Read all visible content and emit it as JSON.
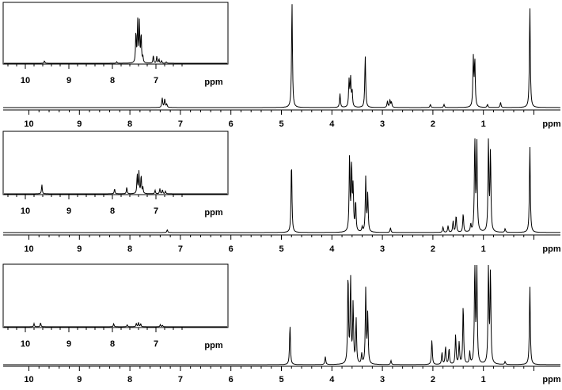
{
  "chart_data": [
    {
      "type": "line",
      "xlabel": "ppm",
      "x_reversed": true,
      "xlim": [
        10.5,
        -0.2
      ],
      "xticks": [
        "10",
        "9",
        "8",
        "7",
        "6",
        "5",
        "4",
        "3",
        "2",
        "1",
        "ppm"
      ],
      "peaks": [
        {
          "ppm": 7.36,
          "h": 0.09
        },
        {
          "ppm": 7.31,
          "h": 0.08
        },
        {
          "ppm": 7.27,
          "h": 0.03
        },
        {
          "ppm": 4.79,
          "h": 1.0
        },
        {
          "ppm": 3.84,
          "h": 0.13
        },
        {
          "ppm": 3.66,
          "h": 0.25
        },
        {
          "ppm": 3.63,
          "h": 0.27
        },
        {
          "ppm": 3.6,
          "h": 0.15
        },
        {
          "ppm": 3.34,
          "h": 0.49
        },
        {
          "ppm": 2.9,
          "h": 0.06
        },
        {
          "ppm": 2.85,
          "h": 0.07
        },
        {
          "ppm": 2.82,
          "h": 0.05
        },
        {
          "ppm": 2.05,
          "h": 0.03
        },
        {
          "ppm": 1.78,
          "h": 0.03
        },
        {
          "ppm": 1.2,
          "h": 0.46
        },
        {
          "ppm": 1.17,
          "h": 0.44
        },
        {
          "ppm": 0.92,
          "h": 0.03
        },
        {
          "ppm": 0.66,
          "h": 0.05
        },
        {
          "ppm": 0.08,
          "h": 0.96
        }
      ],
      "inset": {
        "xlim": [
          10.5,
          6.2
        ],
        "xticks": [
          "10",
          "9",
          "8",
          "7",
          "ppm"
        ],
        "peaks": [
          {
            "ppm": 9.56,
            "h": 0.05
          },
          {
            "ppm": 7.9,
            "h": 0.03
          },
          {
            "ppm": 7.46,
            "h": 0.62
          },
          {
            "ppm": 7.42,
            "h": 0.84
          },
          {
            "ppm": 7.38,
            "h": 0.82
          },
          {
            "ppm": 7.34,
            "h": 0.58
          },
          {
            "ppm": 7.3,
            "h": 0.12
          },
          {
            "ppm": 7.06,
            "h": 0.16
          },
          {
            "ppm": 6.98,
            "h": 0.14
          },
          {
            "ppm": 6.93,
            "h": 0.08
          },
          {
            "ppm": 6.87,
            "h": 0.05
          },
          {
            "ppm": 6.76,
            "h": 0.03
          }
        ]
      }
    },
    {
      "type": "line",
      "xlabel": "ppm",
      "x_reversed": true,
      "xlim": [
        10.5,
        -0.2
      ],
      "xticks": [
        "10",
        "9",
        "8",
        "7",
        "6",
        "5",
        "4",
        "3",
        "2",
        "1",
        "ppm"
      ],
      "peaks": [
        {
          "ppm": 7.26,
          "h": 0.03
        },
        {
          "ppm": 4.8,
          "h": 0.76
        },
        {
          "ppm": 3.65,
          "h": 0.8
        },
        {
          "ppm": 3.61,
          "h": 0.7
        },
        {
          "ppm": 3.58,
          "h": 0.45
        },
        {
          "ppm": 3.53,
          "h": 0.32
        },
        {
          "ppm": 3.4,
          "h": 0.05
        },
        {
          "ppm": 3.33,
          "h": 0.58
        },
        {
          "ppm": 3.29,
          "h": 0.4
        },
        {
          "ppm": 2.84,
          "h": 0.05
        },
        {
          "ppm": 1.8,
          "h": 0.06
        },
        {
          "ppm": 1.7,
          "h": 0.07
        },
        {
          "ppm": 1.6,
          "h": 0.12
        },
        {
          "ppm": 1.54,
          "h": 0.18
        },
        {
          "ppm": 1.4,
          "h": 0.2
        },
        {
          "ppm": 1.25,
          "h": 0.08
        },
        {
          "ppm": 1.17,
          "h": 1.0
        },
        {
          "ppm": 1.13,
          "h": 0.95
        },
        {
          "ppm": 0.9,
          "h": 0.98
        },
        {
          "ppm": 0.86,
          "h": 0.85
        },
        {
          "ppm": 0.57,
          "h": 0.04
        },
        {
          "ppm": 0.08,
          "h": 0.93
        }
      ],
      "inset": {
        "xlim": [
          10.5,
          6.2
        ],
        "xticks": [
          "10",
          "9",
          "8",
          "7",
          "ppm"
        ],
        "peaks": [
          {
            "ppm": 9.62,
            "h": 0.18
          },
          {
            "ppm": 7.95,
            "h": 0.1
          },
          {
            "ppm": 7.67,
            "h": 0.13
          },
          {
            "ppm": 7.43,
            "h": 0.38
          },
          {
            "ppm": 7.39,
            "h": 0.42
          },
          {
            "ppm": 7.34,
            "h": 0.36
          },
          {
            "ppm": 7.3,
            "h": 0.12
          },
          {
            "ppm": 7.02,
            "h": 0.07
          },
          {
            "ppm": 6.91,
            "h": 0.1
          },
          {
            "ppm": 6.85,
            "h": 0.08
          },
          {
            "ppm": 6.78,
            "h": 0.05
          }
        ]
      }
    },
    {
      "type": "line",
      "xlabel": "ppm",
      "x_reversed": true,
      "xlim": [
        10.5,
        -0.2
      ],
      "xticks": [
        "10",
        "9",
        "8",
        "7",
        "6",
        "5",
        "4",
        "3",
        "2",
        "1",
        "ppm"
      ],
      "peaks": [
        {
          "ppm": 4.83,
          "h": 0.4
        },
        {
          "ppm": 4.13,
          "h": 0.08
        },
        {
          "ppm": 3.68,
          "h": 0.9
        },
        {
          "ppm": 3.63,
          "h": 0.85
        },
        {
          "ppm": 3.58,
          "h": 0.6
        },
        {
          "ppm": 3.52,
          "h": 0.45
        },
        {
          "ppm": 3.41,
          "h": 0.1
        },
        {
          "ppm": 3.33,
          "h": 0.75
        },
        {
          "ppm": 3.29,
          "h": 0.5
        },
        {
          "ppm": 2.83,
          "h": 0.04
        },
        {
          "ppm": 2.02,
          "h": 0.25
        },
        {
          "ppm": 1.82,
          "h": 0.12
        },
        {
          "ppm": 1.75,
          "h": 0.18
        },
        {
          "ppm": 1.68,
          "h": 0.16
        },
        {
          "ppm": 1.55,
          "h": 0.3
        },
        {
          "ppm": 1.48,
          "h": 0.22
        },
        {
          "ppm": 1.4,
          "h": 0.6
        },
        {
          "ppm": 1.27,
          "h": 0.12
        },
        {
          "ppm": 1.17,
          "h": 1.0
        },
        {
          "ppm": 1.13,
          "h": 1.0
        },
        {
          "ppm": 0.9,
          "h": 1.0
        },
        {
          "ppm": 0.86,
          "h": 0.92
        },
        {
          "ppm": 0.57,
          "h": 0.03
        },
        {
          "ppm": 0.08,
          "h": 0.8
        }
      ],
      "inset": {
        "xlim": [
          10.5,
          6.2
        ],
        "xticks": [
          "10",
          "9",
          "8",
          "7",
          "ppm"
        ],
        "peaks": [
          {
            "ppm": 9.8,
            "h": 0.06
          },
          {
            "ppm": 9.65,
            "h": 0.08
          },
          {
            "ppm": 7.97,
            "h": 0.06
          },
          {
            "ppm": 7.66,
            "h": 0.04
          },
          {
            "ppm": 7.45,
            "h": 0.07
          },
          {
            "ppm": 7.4,
            "h": 0.08
          },
          {
            "ppm": 7.35,
            "h": 0.06
          },
          {
            "ppm": 6.9,
            "h": 0.04
          },
          {
            "ppm": 6.85,
            "h": 0.03
          }
        ]
      }
    }
  ]
}
